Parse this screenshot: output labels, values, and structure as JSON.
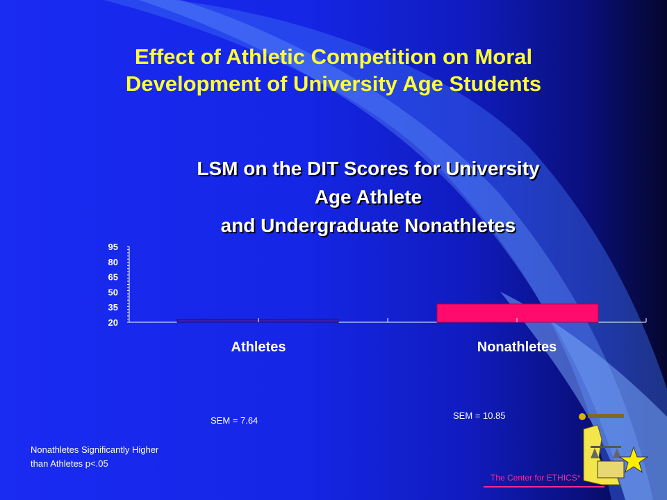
{
  "slide_title_line1": "Effect of Athletic Competition on Moral",
  "slide_title_line2": "Development of University Age Students",
  "chart_data": {
    "type": "bar",
    "title_lines": [
      "LSM on the DIT Scores for University",
      "Age Athlete",
      "and Undergraduate Nonathletes"
    ],
    "categories": [
      "Athletes",
      "Nonathletes"
    ],
    "values": [
      23,
      38
    ],
    "colors": [
      "#3a1ea8",
      "#ff0b6e"
    ],
    "ylim": [
      20,
      95
    ],
    "yticks": [
      20,
      35,
      50,
      65,
      80,
      95
    ]
  },
  "sem_athletes": "SEM = 7.64",
  "sem_nonathletes": "SEM = 10.85",
  "note_line1": "Nonathletes  Significantly Higher",
  "note_line2": "than Athletes  p<.05",
  "footer": "The Center for ETHICS*",
  "colors": {
    "title": "#ffff33",
    "footer": "#ff2a8a"
  }
}
